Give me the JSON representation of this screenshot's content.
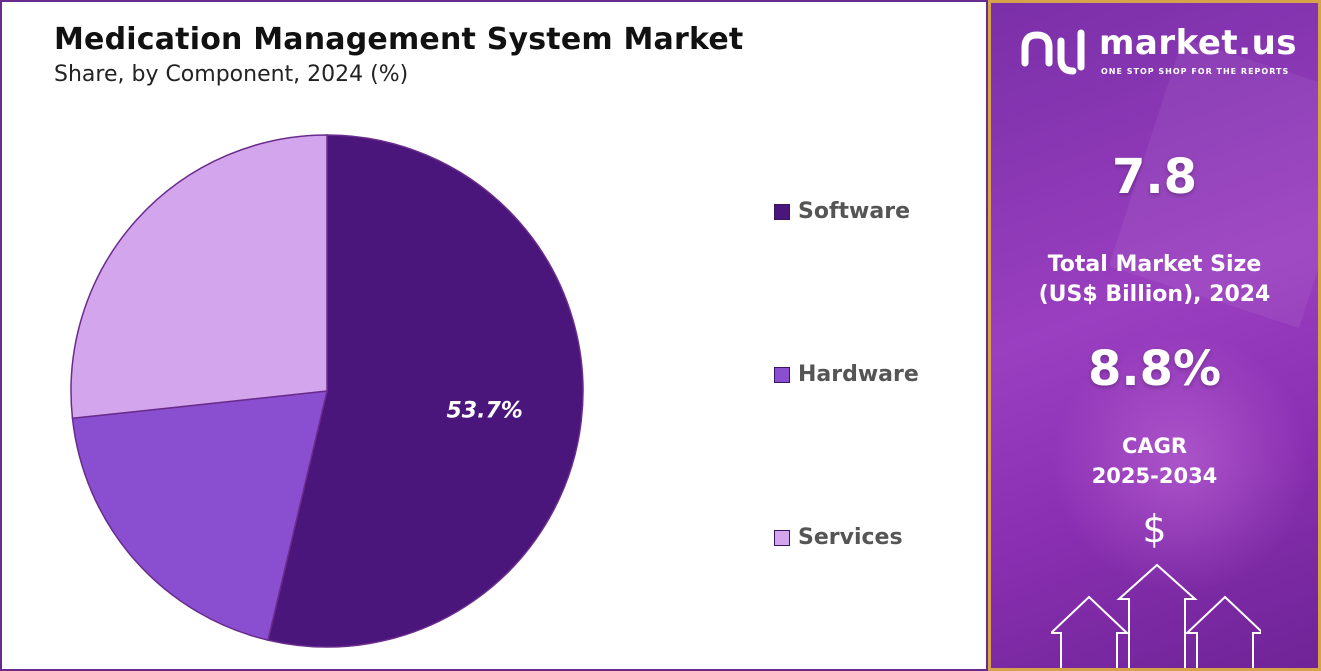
{
  "chart_data": {
    "type": "pie",
    "title": "Medication Management System Market",
    "subtitle": "Share, by Component, 2024 (%)",
    "categories": [
      "Software",
      "Hardware",
      "Services"
    ],
    "values": [
      53.7,
      19.6,
      26.7
    ],
    "colors": [
      "#4b167c",
      "#8a4fd0",
      "#d3a5ec"
    ],
    "data_labels": [
      "53.7%",
      "",
      ""
    ],
    "legend_position": "right"
  },
  "legend": {
    "items": [
      {
        "label": "Software",
        "color": "#4b167c"
      },
      {
        "label": "Hardware",
        "color": "#8a4fd0"
      },
      {
        "label": "Services",
        "color": "#d3a5ec"
      }
    ]
  },
  "panel": {
    "brand": "market.us",
    "tagline": "ONE STOP SHOP FOR THE REPORTS",
    "market_size_value": "7.8",
    "market_size_label_line1": "Total Market Size",
    "market_size_label_line2": "(US$ Billion), 2024",
    "cagr_value": "8.8%",
    "cagr_label_line1": "CAGR",
    "cagr_label_line2": "2025-2034",
    "dollar_symbol": "$",
    "icons": [
      "market-us-logo-icon",
      "dollar-icon",
      "growth-arrows-icon"
    ]
  }
}
